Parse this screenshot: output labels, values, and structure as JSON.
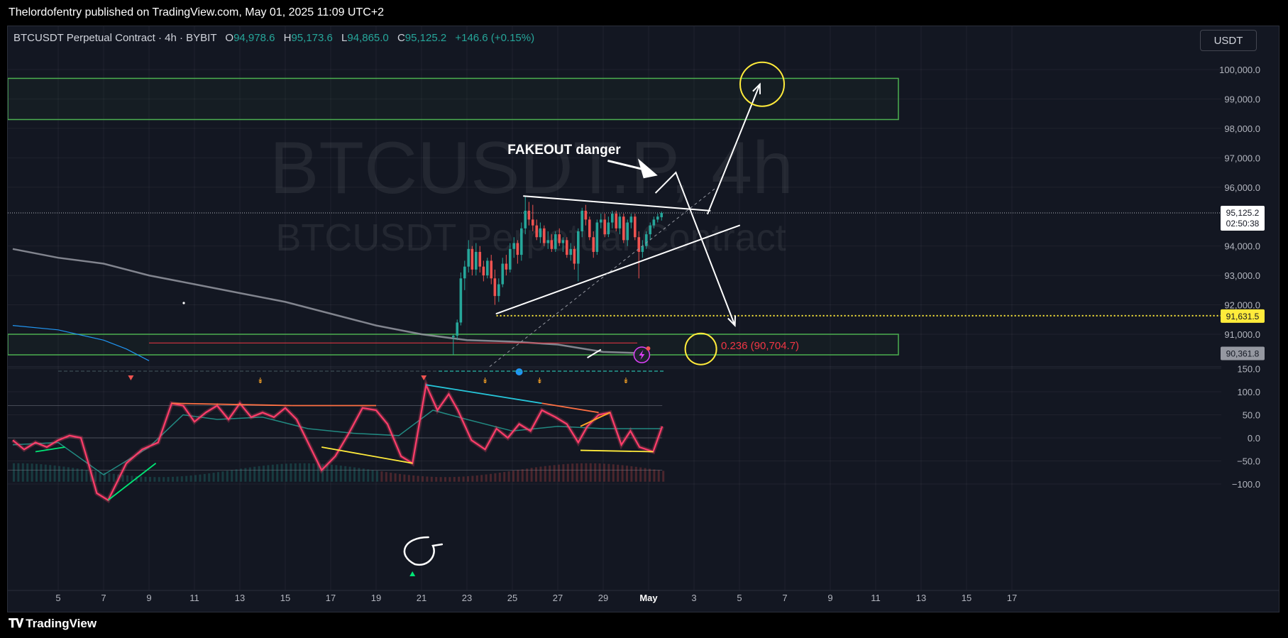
{
  "header": {
    "published_text": "Thelordofentry published on TradingView.com, May 01, 2025 11:09 UTC+2"
  },
  "legend": {
    "symbol": "BTCUSDT Perpetual Contract · 4h · BYBIT",
    "open_label": "O",
    "open": "94,978.6",
    "high_label": "H",
    "high": "95,173.6",
    "low_label": "L",
    "low": "94,865.0",
    "close_label": "C",
    "close": "95,125.2",
    "change": "+146.6 (+0.15%)"
  },
  "toolbar": {
    "currency": "USDT"
  },
  "watermark": {
    "line1": "BTCUSDT.P, 4h",
    "line2": "BTCUSDT Perpetual Contract"
  },
  "annotations": {
    "fakeout": "FAKEOUT danger",
    "fib_label": "0.236 (90,704.7)"
  },
  "price_axis": {
    "labels": [
      "100,000.0",
      "99,000.0",
      "98,000.0",
      "97,000.0",
      "96,000.0",
      "94,000.0",
      "93,000.0",
      "92,000.0",
      "91,000.0"
    ],
    "current_price": "95,125.2",
    "countdown": "02:50:38",
    "yellow_level": "91,631.5",
    "ma_level": "90,361.8"
  },
  "oscillator_axis": {
    "labels": [
      "150.0",
      "100.0",
      "50.0",
      "0.0",
      "−50.0",
      "−100.0"
    ]
  },
  "time_axis": {
    "labels": [
      "5",
      "7",
      "9",
      "11",
      "13",
      "15",
      "17",
      "19",
      "21",
      "23",
      "25",
      "27",
      "29",
      "May",
      "3",
      "5",
      "7",
      "9",
      "11",
      "13",
      "15",
      "17"
    ]
  },
  "footer": {
    "brand": "TradingView"
  },
  "colors": {
    "background": "#131722",
    "up": "#26a69a",
    "down": "#ef5350",
    "zone": "#4caf50",
    "yellow": "#ffeb3b",
    "ma": "#9598a1",
    "fib": "#f23645"
  },
  "chart_data": {
    "type": "candlestick",
    "symbol": "BTCUSDT.P",
    "timeframe": "4h",
    "exchange": "BYBIT",
    "ylim": [
      89900,
      100600
    ],
    "x_range_days": [
      "Apr 3",
      "May 18"
    ],
    "candles": [
      {
        "d": 22.4,
        "o": 90900,
        "h": 91000,
        "l": 90300,
        "c": 90950
      },
      {
        "d": 22.57,
        "o": 90950,
        "h": 91500,
        "l": 90800,
        "c": 91400
      },
      {
        "d": 22.73,
        "o": 91400,
        "h": 93100,
        "l": 91300,
        "c": 92900
      },
      {
        "d": 22.9,
        "o": 92900,
        "h": 93500,
        "l": 92500,
        "c": 93300
      },
      {
        "d": 23.07,
        "o": 93300,
        "h": 94200,
        "l": 93100,
        "c": 93900
      },
      {
        "d": 23.23,
        "o": 93900,
        "h": 94000,
        "l": 93000,
        "c": 93200
      },
      {
        "d": 23.4,
        "o": 93200,
        "h": 94100,
        "l": 93000,
        "c": 93800
      },
      {
        "d": 23.57,
        "o": 93800,
        "h": 94000,
        "l": 93100,
        "c": 93300
      },
      {
        "d": 23.73,
        "o": 93300,
        "h": 93500,
        "l": 92800,
        "c": 93000
      },
      {
        "d": 23.9,
        "o": 93000,
        "h": 93600,
        "l": 92900,
        "c": 93500
      },
      {
        "d": 24.07,
        "o": 93500,
        "h": 93700,
        "l": 92700,
        "c": 92900
      },
      {
        "d": 24.23,
        "o": 92900,
        "h": 93200,
        "l": 92000,
        "c": 92300
      },
      {
        "d": 24.4,
        "o": 92300,
        "h": 92900,
        "l": 92100,
        "c": 92700
      },
      {
        "d": 24.57,
        "o": 92700,
        "h": 93600,
        "l": 92600,
        "c": 93400
      },
      {
        "d": 24.73,
        "o": 93400,
        "h": 93700,
        "l": 93000,
        "c": 93200
      },
      {
        "d": 24.9,
        "o": 93200,
        "h": 94100,
        "l": 93100,
        "c": 93900
      },
      {
        "d": 25.07,
        "o": 93900,
        "h": 94300,
        "l": 93600,
        "c": 94100
      },
      {
        "d": 25.23,
        "o": 94100,
        "h": 94200,
        "l": 93400,
        "c": 93700
      },
      {
        "d": 25.4,
        "o": 93700,
        "h": 94800,
        "l": 93500,
        "c": 94600
      },
      {
        "d": 25.57,
        "o": 94600,
        "h": 95700,
        "l": 94400,
        "c": 95200
      },
      {
        "d": 25.73,
        "o": 95200,
        "h": 95500,
        "l": 94700,
        "c": 94900
      },
      {
        "d": 25.9,
        "o": 94900,
        "h": 95400,
        "l": 94500,
        "c": 94700
      },
      {
        "d": 26.07,
        "o": 94700,
        "h": 94900,
        "l": 94200,
        "c": 94300
      },
      {
        "d": 26.23,
        "o": 94300,
        "h": 94800,
        "l": 94100,
        "c": 94600
      },
      {
        "d": 26.4,
        "o": 94600,
        "h": 94700,
        "l": 94000,
        "c": 94100
      },
      {
        "d": 26.57,
        "o": 94100,
        "h": 94500,
        "l": 93900,
        "c": 94200
      },
      {
        "d": 26.73,
        "o": 94200,
        "h": 94400,
        "l": 93800,
        "c": 93900
      },
      {
        "d": 26.9,
        "o": 93900,
        "h": 94500,
        "l": 93800,
        "c": 94400
      },
      {
        "d": 27.07,
        "o": 94400,
        "h": 94600,
        "l": 94000,
        "c": 94100
      },
      {
        "d": 27.23,
        "o": 94100,
        "h": 94300,
        "l": 93800,
        "c": 94200
      },
      {
        "d": 27.4,
        "o": 94200,
        "h": 94300,
        "l": 93600,
        "c": 93700
      },
      {
        "d": 27.57,
        "o": 93700,
        "h": 94100,
        "l": 93500,
        "c": 93900
      },
      {
        "d": 27.73,
        "o": 93900,
        "h": 94000,
        "l": 93200,
        "c": 93400
      },
      {
        "d": 27.9,
        "o": 93400,
        "h": 94600,
        "l": 92800,
        "c": 94500
      },
      {
        "d": 28.07,
        "o": 94500,
        "h": 95300,
        "l": 94300,
        "c": 95200
      },
      {
        "d": 28.23,
        "o": 95200,
        "h": 95400,
        "l": 94700,
        "c": 94900
      },
      {
        "d": 28.4,
        "o": 94900,
        "h": 95000,
        "l": 94200,
        "c": 94300
      },
      {
        "d": 28.57,
        "o": 94300,
        "h": 94500,
        "l": 93600,
        "c": 93800
      },
      {
        "d": 28.73,
        "o": 93800,
        "h": 94900,
        "l": 93700,
        "c": 94800
      },
      {
        "d": 28.9,
        "o": 94800,
        "h": 95100,
        "l": 94600,
        "c": 94900
      },
      {
        "d": 29.07,
        "o": 94900,
        "h": 95100,
        "l": 94300,
        "c": 94400
      },
      {
        "d": 29.23,
        "o": 94400,
        "h": 95000,
        "l": 94300,
        "c": 94800
      },
      {
        "d": 29.4,
        "o": 94800,
        "h": 95200,
        "l": 94600,
        "c": 95100
      },
      {
        "d": 29.57,
        "o": 95100,
        "h": 95200,
        "l": 94500,
        "c": 94600
      },
      {
        "d": 29.73,
        "o": 94600,
        "h": 95100,
        "l": 94400,
        "c": 95000
      },
      {
        "d": 29.9,
        "o": 95000,
        "h": 95100,
        "l": 94100,
        "c": 94200
      },
      {
        "d": 30.07,
        "o": 94200,
        "h": 94900,
        "l": 94000,
        "c": 94800
      },
      {
        "d": 30.23,
        "o": 94800,
        "h": 95100,
        "l": 94600,
        "c": 95000
      },
      {
        "d": 30.4,
        "o": 95000,
        "h": 95100,
        "l": 94200,
        "c": 94300
      },
      {
        "d": 30.57,
        "o": 94300,
        "h": 94500,
        "l": 92900,
        "c": 93800
      },
      {
        "d": 30.73,
        "o": 93800,
        "h": 94200,
        "l": 93600,
        "c": 94000
      },
      {
        "d": 30.9,
        "o": 94000,
        "h": 94500,
        "l": 93900,
        "c": 94400
      },
      {
        "d": 31.07,
        "o": 94400,
        "h": 94800,
        "l": 94200,
        "c": 94700
      },
      {
        "d": 31.23,
        "o": 94700,
        "h": 95000,
        "l": 94600,
        "c": 94900
      },
      {
        "d": 31.4,
        "o": 94900,
        "h": 95100,
        "l": 94800,
        "c": 95000
      },
      {
        "d": 31.57,
        "o": 94978.6,
        "h": 95173.6,
        "l": 94865.0,
        "c": 95125.2
      }
    ],
    "ma_line": [
      [
        3,
        93900
      ],
      [
        5,
        93600
      ],
      [
        7,
        93400
      ],
      [
        9,
        93000
      ],
      [
        11,
        92700
      ],
      [
        13,
        92400
      ],
      [
        15,
        92100
      ],
      [
        17,
        91700
      ],
      [
        19,
        91300
      ],
      [
        21,
        91000
      ],
      [
        23,
        90800
      ],
      [
        25,
        90750
      ],
      [
        27,
        90650
      ],
      [
        29,
        90400
      ],
      [
        30.5,
        90361.8
      ]
    ],
    "blue_line": [
      [
        3,
        91300
      ],
      [
        5,
        91150
      ],
      [
        7,
        90800
      ],
      [
        8,
        90500
      ],
      [
        9,
        90100
      ]
    ],
    "zones": [
      {
        "from_day": 3,
        "to_day": 11.0,
        "low": 98300,
        "high": 99700,
        "extend_to_day": 42
      },
      {
        "from_day": 3,
        "to_day": 42,
        "low": 90300,
        "high": 91000
      }
    ],
    "fib_level": {
      "label": "0.236 (90,704.7)",
      "value": 90704.7,
      "from_day": 9,
      "to_day": 33
    },
    "horizontal_levels": [
      {
        "value": 95125.2,
        "style": "dotted-white"
      },
      {
        "value": 91631.5,
        "style": "dotted-yellow",
        "from_day": 24.3
      }
    ],
    "trendlines": [
      {
        "from": [
          25.5,
          95700
        ],
        "to": [
          33.7,
          95200
        ],
        "color": "white"
      },
      {
        "from": [
          24.3,
          91700
        ],
        "to": [
          35.0,
          94700
        ],
        "color": "white"
      }
    ],
    "projection_path": [
      [
        31.3,
        95800
      ],
      [
        32.2,
        96500
      ],
      [
        34.8,
        91300
      ]
    ],
    "upside_arrow": {
      "from": [
        33.6,
        95100
      ],
      "to": [
        35.9,
        99500
      ]
    },
    "fakeout_arrow": {
      "from": [
        29.2,
        96900
      ],
      "to": [
        31.4,
        96400
      ]
    },
    "targets": [
      {
        "day": 36.0,
        "value": 99500,
        "shape": "circle"
      },
      {
        "day": 33.3,
        "value": 90500,
        "shape": "circle"
      }
    ],
    "oscillator": {
      "ylim": [
        -140,
        165
      ],
      "guide_levels": [
        70,
        0,
        -70
      ],
      "x_end_day": 31.6,
      "main_line": [
        [
          3,
          -5
        ],
        [
          3.5,
          -25
        ],
        [
          4,
          -10
        ],
        [
          4.5,
          -20
        ],
        [
          5,
          -5
        ],
        [
          5.5,
          5
        ],
        [
          6,
          0
        ],
        [
          6.3,
          -50
        ],
        [
          6.7,
          -120
        ],
        [
          7.2,
          -135
        ],
        [
          8,
          -55
        ],
        [
          8.7,
          -25
        ],
        [
          9.4,
          -10
        ],
        [
          10,
          75
        ],
        [
          10.5,
          70
        ],
        [
          11,
          35
        ],
        [
          11.5,
          55
        ],
        [
          12,
          70
        ],
        [
          12.5,
          40
        ],
        [
          13,
          75
        ],
        [
          13.5,
          45
        ],
        [
          14,
          55
        ],
        [
          14.5,
          45
        ],
        [
          15,
          65
        ],
        [
          15.5,
          40
        ],
        [
          16,
          -10
        ],
        [
          16.6,
          -70
        ],
        [
          17.2,
          -40
        ],
        [
          17.8,
          10
        ],
        [
          18.4,
          65
        ],
        [
          19,
          60
        ],
        [
          19.5,
          30
        ],
        [
          20.1,
          -40
        ],
        [
          20.6,
          -55
        ],
        [
          21.2,
          115
        ],
        [
          21.7,
          60
        ],
        [
          22.2,
          95
        ],
        [
          22.6,
          60
        ],
        [
          23.2,
          -5
        ],
        [
          23.8,
          -25
        ],
        [
          24.3,
          20
        ],
        [
          24.8,
          0
        ],
        [
          25.3,
          30
        ],
        [
          25.8,
          15
        ],
        [
          26.3,
          60
        ],
        [
          26.9,
          45
        ],
        [
          27.4,
          30
        ],
        [
          27.9,
          -10
        ],
        [
          28.3,
          25
        ],
        [
          28.8,
          50
        ],
        [
          29.3,
          55
        ],
        [
          29.8,
          -15
        ],
        [
          30.2,
          15
        ],
        [
          30.6,
          -20
        ],
        [
          31.2,
          -30
        ],
        [
          31.6,
          25
        ]
      ],
      "signal_line": [
        [
          3,
          -15
        ],
        [
          5,
          -10
        ],
        [
          7,
          -80
        ],
        [
          9,
          -20
        ],
        [
          10.5,
          50
        ],
        [
          12,
          40
        ],
        [
          14,
          45
        ],
        [
          16,
          20
        ],
        [
          18,
          10
        ],
        [
          20,
          5
        ],
        [
          21.5,
          60
        ],
        [
          23,
          40
        ],
        [
          25,
          15
        ],
        [
          27,
          25
        ],
        [
          29,
          20
        ],
        [
          31.6,
          20
        ]
      ],
      "divergence_lines": [
        {
          "from": [
            4.0,
            -30
          ],
          "to": [
            5.3,
            -20
          ],
          "color": "#00e676"
        },
        {
          "from": [
            7.2,
            -135
          ],
          "to": [
            9.3,
            -55
          ],
          "color": "#00e676"
        },
        {
          "from": [
            16.6,
            -20
          ],
          "to": [
            20.6,
            -55
          ],
          "color": "#ffeb3b"
        },
        {
          "from": [
            28.0,
            -27
          ],
          "to": [
            31.2,
            -30
          ],
          "color": "#ffeb3b"
        },
        {
          "from": [
            10.0,
            75
          ],
          "to": [
            15.3,
            70
          ],
          "color": "#ff7043"
        },
        {
          "from": [
            15.3,
            70
          ],
          "to": [
            19.0,
            70
          ],
          "color": "#ff7043"
        },
        {
          "from": [
            21.2,
            115
          ],
          "to": [
            26.3,
            75
          ],
          "color": "#26c6da"
        },
        {
          "from": [
            26.3,
            75
          ],
          "to": [
            28.8,
            55
          ],
          "color": "#ff7043"
        },
        {
          "from": [
            28.0,
            25
          ],
          "to": [
            29.3,
            55
          ],
          "color": "#ffa726"
        }
      ]
    }
  }
}
